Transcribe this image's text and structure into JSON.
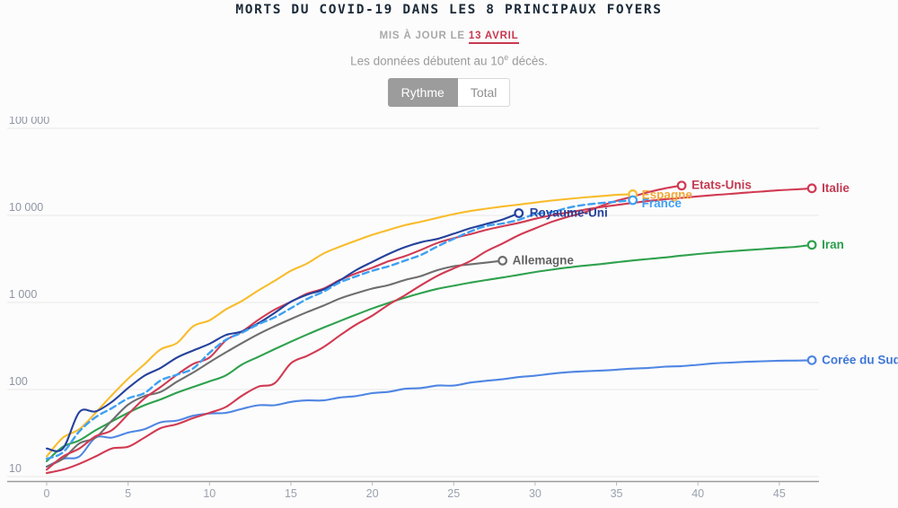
{
  "header": {
    "title": "MORTS DU COVID-19 DANS LES 8 PRINCIPAUX FOYERS",
    "updated_prefix": "MIS À JOUR LE",
    "updated_date": "13 AVRIL",
    "note_prefix": "Les données débutent au 10",
    "note_sup": "e",
    "note_suffix": " décès.",
    "accent_color": "#c9384f",
    "toggle": {
      "active_label": "Rythme",
      "inactive_label": "Total"
    }
  },
  "chart_data": {
    "type": "line",
    "y_scale": "log",
    "x_ticks": [
      0,
      5,
      10,
      15,
      20,
      25,
      30,
      35,
      40,
      45
    ],
    "y_ticks": [
      10,
      100,
      1000,
      10000,
      100000
    ],
    "y_tick_labels": [
      "10",
      "100",
      "1 000",
      "10 000",
      "100 000"
    ],
    "ylim": [
      10,
      100000
    ],
    "xlim": [
      0,
      47.5
    ],
    "grid": "horizontal",
    "legend_position": "line-end-labels",
    "series": [
      {
        "name": "Corée du Sud",
        "color": "#4f86e3",
        "label_color": "#3f77d9",
        "dash": false,
        "label_dx": 11,
        "label_dy": 4,
        "values": [
          13,
          16,
          17,
          28,
          28,
          32,
          35,
          42,
          44,
          50,
          53,
          54,
          60,
          66,
          66,
          72,
          75,
          75,
          81,
          84,
          91,
          94,
          102,
          104,
          111,
          111,
          120,
          126,
          131,
          139,
          144,
          152,
          158,
          162,
          165,
          169,
          174,
          177,
          183,
          186,
          192,
          200,
          204,
          208,
          211,
          214,
          215,
          217
        ]
      },
      {
        "name": "Iran",
        "color": "#2fa14e",
        "label_color": "#2a9e4a",
        "dash": false,
        "label_dx": 11,
        "label_dy": 4,
        "values": [
          15,
          22,
          26,
          34,
          43,
          54,
          66,
          77,
          92,
          107,
          124,
          145,
          194,
          237,
          291,
          354,
          429,
          514,
          611,
          724,
          853,
          988,
          1135,
          1284,
          1433,
          1556,
          1685,
          1812,
          1934,
          2077,
          2234,
          2378,
          2517,
          2640,
          2757,
          2898,
          3036,
          3160,
          3294,
          3452,
          3603,
          3739,
          3872,
          3993,
          4110,
          4232,
          4357,
          4585
        ]
      },
      {
        "name": "Allemagne",
        "color": "#6e6e6e",
        "label_color": "#636363",
        "dash": false,
        "label_dx": 11,
        "label_dy": 4,
        "values": [
          13,
          16,
          24,
          28,
          44,
          67,
          84,
          94,
          123,
          157,
          206,
          267,
          342,
          433,
          533,
          645,
          775,
          920,
          1107,
          1275,
          1444,
          1584,
          1810,
          2016,
          2349,
          2607,
          2736,
          2871,
          3022
        ]
      },
      {
        "name": "Italie",
        "color": "#d13a52",
        "label_color": "#c33a52",
        "dash": false,
        "label_dx": 11,
        "label_dy": 4,
        "values": [
          12,
          17,
          21,
          29,
          34,
          52,
          79,
          107,
          148,
          197,
          233,
          366,
          463,
          631,
          827,
          1016,
          1266,
          1441,
          1809,
          2158,
          2503,
          2978,
          3405,
          4032,
          4825,
          5476,
          6077,
          6820,
          7503,
          8215,
          9134,
          10023,
          10779,
          11591,
          12428,
          13155,
          13915,
          14681,
          15362,
          15887,
          16523,
          17127,
          17669,
          18279,
          18849,
          19468,
          19899,
          20465
        ]
      },
      {
        "name": "Espagne",
        "color": "#f8bc2c",
        "label_color": "#f2a93b",
        "dash": false,
        "label_dx": 10,
        "label_dy": 5,
        "values": [
          17,
          28,
          35,
          54,
          86,
          133,
          195,
          289,
          342,
          533,
          623,
          830,
          1043,
          1375,
          1772,
          2311,
          2808,
          3647,
          4365,
          5138,
          5982,
          6803,
          7716,
          8464,
          9387,
          10348,
          11198,
          11947,
          12641,
          13341,
          14045,
          14792,
          15447,
          16081,
          16606,
          17209,
          17489
        ]
      },
      {
        "name": "Etats-Unis",
        "color": "#d13a52",
        "label_color": "#c33a52",
        "dash": false,
        "label_dx": 11,
        "label_dy": 4,
        "values": [
          11,
          12,
          14,
          17,
          21,
          22,
          28,
          36,
          40,
          47,
          54,
          63,
          85,
          108,
          118,
          200,
          244,
          307,
          417,
          557,
          706,
          942,
          1209,
          1581,
          2026,
          2467,
          2978,
          3873,
          4757,
          5926,
          7087,
          8407,
          9619,
          10783,
          12722,
          14695,
          16478,
          18586,
          20463,
          22020
        ]
      },
      {
        "name": "Royaume-Uni",
        "color": "#25419c",
        "label_color": "#25419c",
        "dash": false,
        "label_dx": 12,
        "label_dy": 4,
        "values": [
          21,
          21,
          55,
          56,
          72,
          104,
          144,
          177,
          233,
          281,
          335,
          422,
          465,
          578,
          759,
          1019,
          1228,
          1408,
          1789,
          2352,
          2921,
          3605,
          4313,
          4934,
          5373,
          6159,
          7097,
          7978,
          8958,
          10612
        ]
      },
      {
        "name": "France",
        "color": "#3da0f2",
        "label_color": "#3f9ff4",
        "dash": true,
        "label_dx": 10,
        "label_dy": 8,
        "values": [
          16,
          19,
          33,
          48,
          61,
          79,
          91,
          127,
          148,
          175,
          264,
          372,
          450,
          562,
          674,
          860,
          1100,
          1331,
          1696,
          1995,
          2314,
          2606,
          3024,
          3523,
          4403,
          5387,
          6507,
          7560,
          8078,
          8911,
          10328,
          10869,
          12210,
          13197,
          13832,
          14393,
          14967
        ]
      }
    ]
  }
}
